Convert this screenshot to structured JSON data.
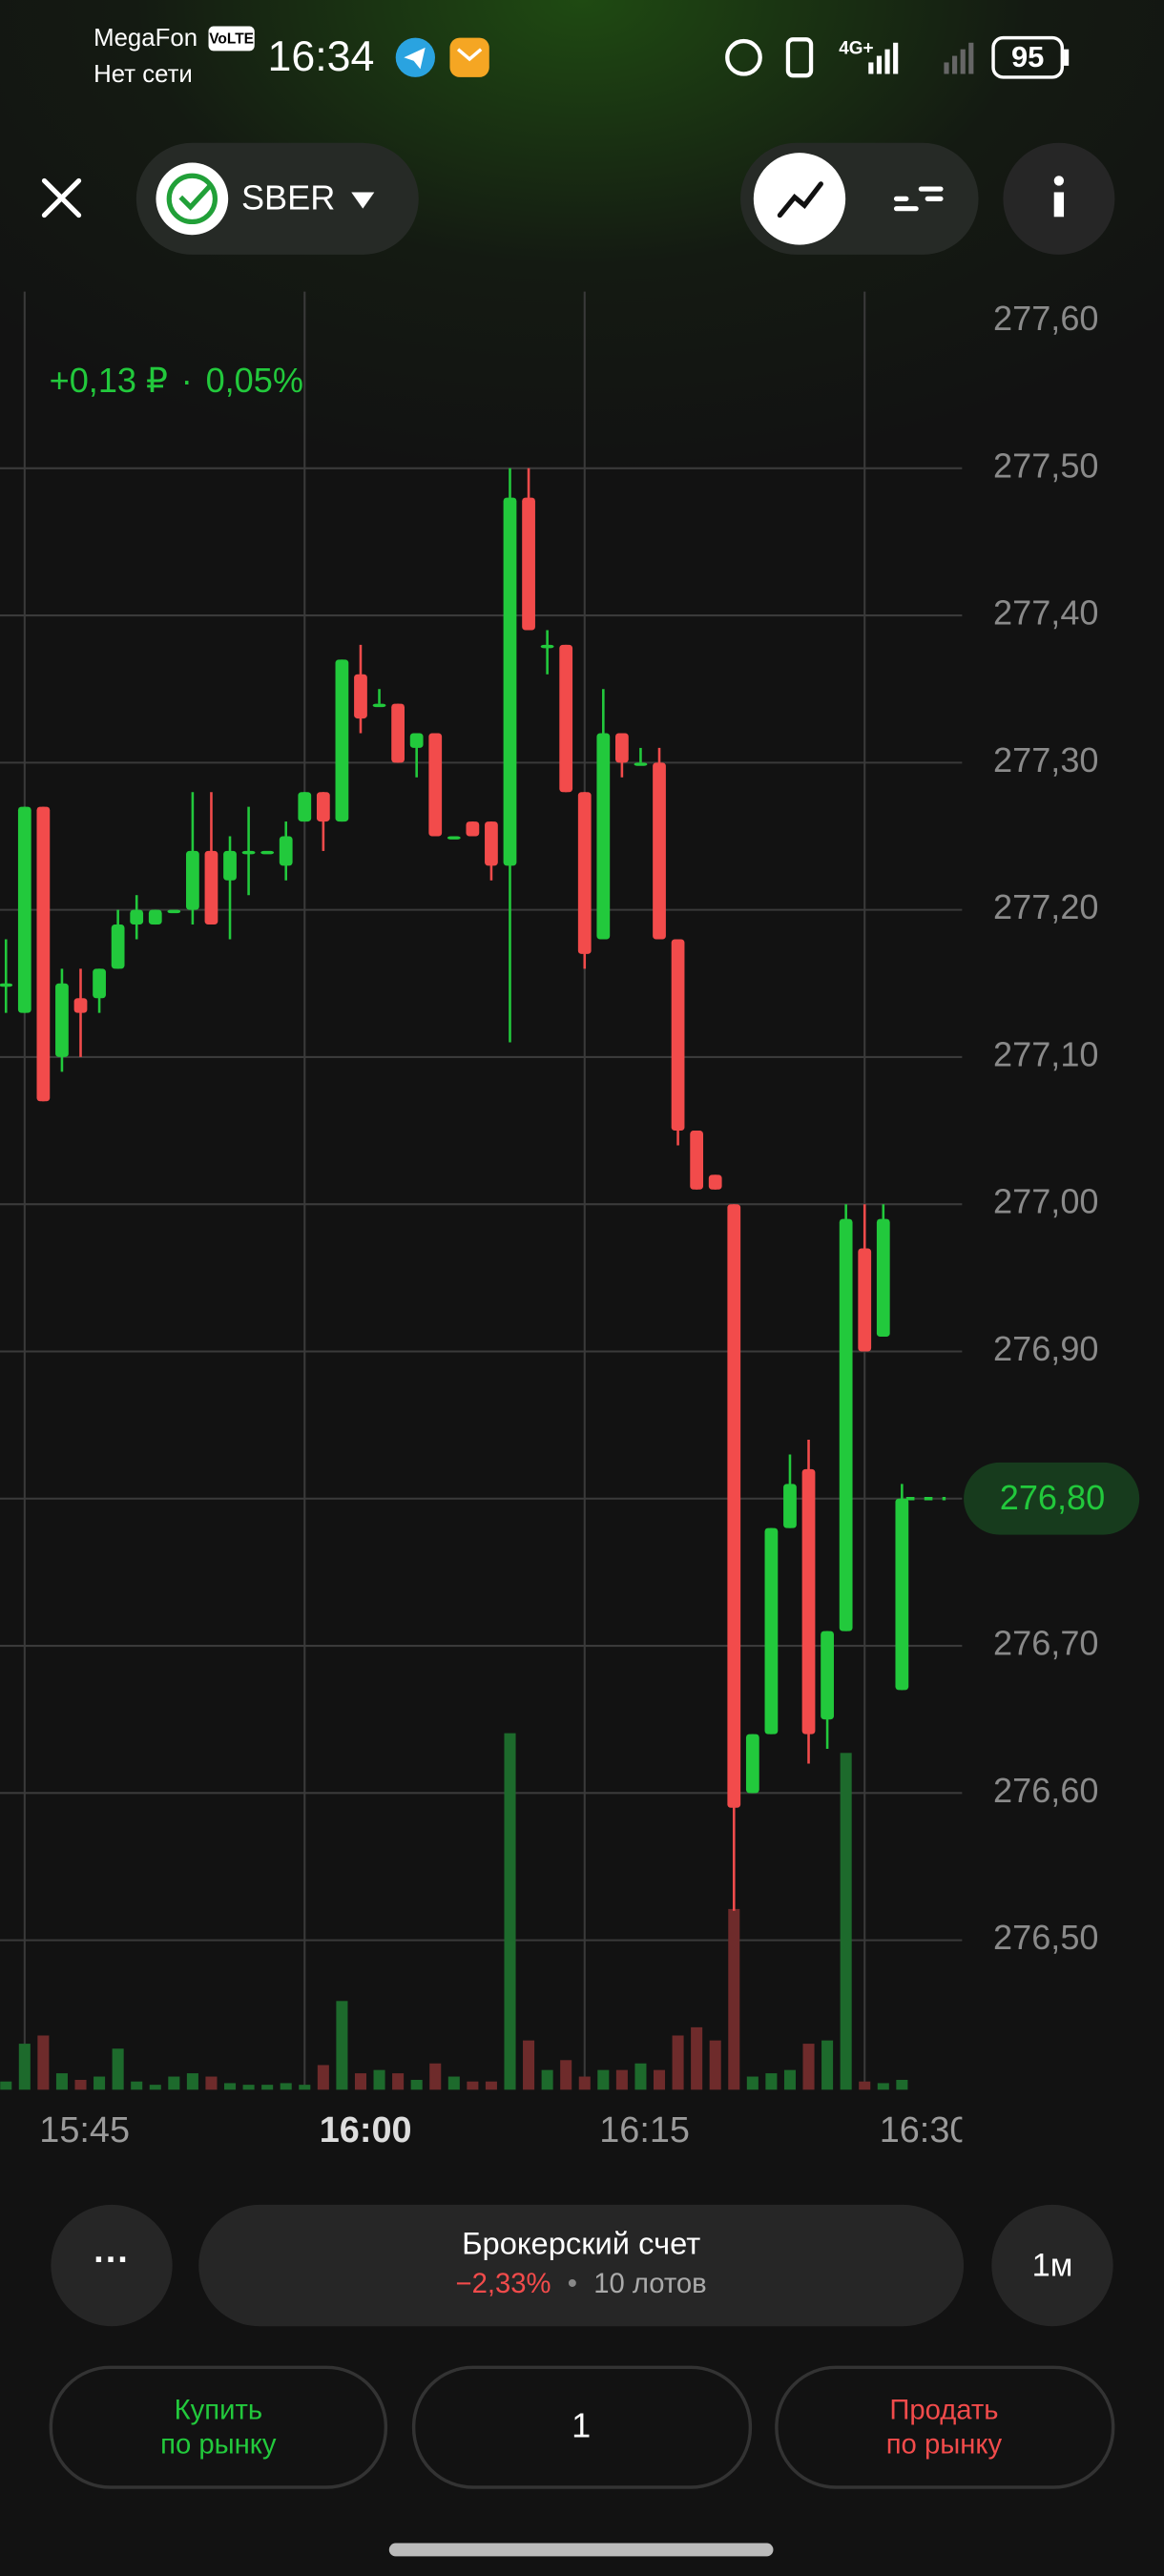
{
  "status_bar": {
    "carrier": "MegaFon",
    "volte": "VoLTE",
    "network": "Нет сети",
    "time": "16:34",
    "signal": "4G+",
    "battery": "95"
  },
  "header": {
    "ticker": "SBER"
  },
  "chart_data": {
    "type": "candlestick",
    "change_abs": "+0,13 ₽",
    "separator": "·",
    "change_pct": "0,05%",
    "categories": [
      null,
      "15:45",
      null,
      null,
      null,
      null,
      null,
      null,
      null,
      null,
      null,
      null,
      null,
      null,
      null,
      null,
      "16:00",
      null,
      null,
      null,
      null,
      null,
      null,
      null,
      null,
      null,
      null,
      null,
      null,
      null,
      null,
      "16:15",
      null,
      null,
      null,
      null,
      null,
      null,
      null,
      null,
      null,
      null,
      null,
      null,
      null,
      null,
      "16:30",
      null,
      null
    ],
    "open": [
      277.15,
      277.13,
      277.27,
      277.1,
      277.14,
      277.14,
      277.16,
      277.19,
      277.19,
      277.2,
      277.2,
      277.24,
      277.22,
      277.24,
      277.24,
      277.23,
      277.26,
      277.28,
      277.26,
      277.36,
      277.34,
      277.34,
      277.31,
      277.32,
      277.25,
      277.26,
      277.26,
      277.23,
      277.48,
      277.38,
      277.38,
      277.28,
      277.18,
      277.32,
      277.3,
      277.3,
      277.18,
      277.05,
      277.02,
      277.0,
      276.6,
      276.64,
      276.78,
      276.82,
      276.65,
      276.71,
      276.97,
      276.91,
      276.67
    ],
    "high": [
      277.18,
      277.27,
      277.27,
      277.16,
      277.16,
      277.16,
      277.2,
      277.21,
      277.2,
      277.2,
      277.28,
      277.28,
      277.25,
      277.27,
      277.24,
      277.26,
      277.28,
      277.28,
      277.37,
      277.38,
      277.35,
      277.34,
      277.32,
      277.32,
      277.25,
      277.26,
      277.26,
      277.5,
      277.5,
      277.39,
      277.38,
      277.28,
      277.35,
      277.32,
      277.31,
      277.31,
      277.18,
      277.05,
      277.02,
      277.0,
      276.64,
      276.78,
      276.83,
      276.84,
      276.71,
      277.0,
      277.0,
      277.0,
      276.81
    ],
    "low": [
      277.13,
      277.13,
      277.07,
      277.09,
      277.1,
      277.13,
      277.16,
      277.18,
      277.19,
      277.2,
      277.19,
      277.19,
      277.18,
      277.21,
      277.24,
      277.22,
      277.26,
      277.24,
      277.26,
      277.32,
      277.34,
      277.3,
      277.29,
      277.25,
      277.25,
      277.25,
      277.22,
      277.11,
      277.39,
      277.36,
      277.28,
      277.16,
      277.18,
      277.29,
      277.3,
      277.18,
      277.04,
      277.01,
      277.01,
      276.52,
      276.6,
      276.64,
      276.78,
      276.62,
      276.63,
      276.71,
      276.9,
      276.91,
      276.67
    ],
    "close": [
      277.15,
      277.27,
      277.07,
      277.15,
      277.13,
      277.16,
      277.19,
      277.2,
      277.2,
      277.2,
      277.24,
      277.19,
      277.24,
      277.24,
      277.24,
      277.25,
      277.28,
      277.26,
      277.37,
      277.33,
      277.34,
      277.3,
      277.32,
      277.25,
      277.25,
      277.25,
      277.23,
      277.48,
      277.39,
      277.38,
      277.28,
      277.17,
      277.32,
      277.3,
      277.3,
      277.18,
      277.05,
      277.01,
      277.01,
      276.59,
      276.64,
      276.78,
      276.81,
      276.64,
      276.71,
      276.99,
      276.9,
      276.99,
      276.8
    ],
    "volume": [
      5,
      28,
      33,
      10,
      6,
      8,
      25,
      5,
      3,
      8,
      10,
      8,
      4,
      3,
      3,
      4,
      3,
      15,
      54,
      10,
      12,
      10,
      6,
      16,
      8,
      5,
      5,
      217,
      30,
      12,
      18,
      8,
      12,
      12,
      16,
      12,
      33,
      38,
      30,
      110,
      8,
      10,
      12,
      28,
      30,
      205,
      5,
      4,
      6
    ],
    "up_color": "#22c93c",
    "down_color": "#f24b4b",
    "up_volume_color": "#1d6a2c",
    "down_volume_color": "#6e2b2b",
    "ylim": [
      276.4,
      277.62
    ],
    "yticks": [
      {
        "value": 277.6,
        "label": "277,60"
      },
      {
        "value": 277.5,
        "label": "277,50"
      },
      {
        "value": 277.4,
        "label": "277,40"
      },
      {
        "value": 277.3,
        "label": "277,30"
      },
      {
        "value": 277.2,
        "label": "277,20"
      },
      {
        "value": 277.1,
        "label": "277,10"
      },
      {
        "value": 277.0,
        "label": "277,00"
      },
      {
        "value": 276.9,
        "label": "276,90"
      },
      {
        "value": 276.8,
        "label": "276,80"
      },
      {
        "value": 276.7,
        "label": "276,70"
      },
      {
        "value": 276.6,
        "label": "276,60"
      },
      {
        "value": 276.5,
        "label": "276,50"
      }
    ],
    "current_price": {
      "value": 276.8,
      "label": "276,80"
    },
    "grid": true
  },
  "footer": {
    "more": "···",
    "account": "Брокерский счет",
    "account_change": "−2,33%",
    "dot": "•",
    "lots": "10 лотов",
    "interval": "1м",
    "buy_line1": "Купить",
    "buy_line2": "по рынку",
    "quantity": "1",
    "sell_line1": "Продать",
    "sell_line2": "по рынку"
  }
}
